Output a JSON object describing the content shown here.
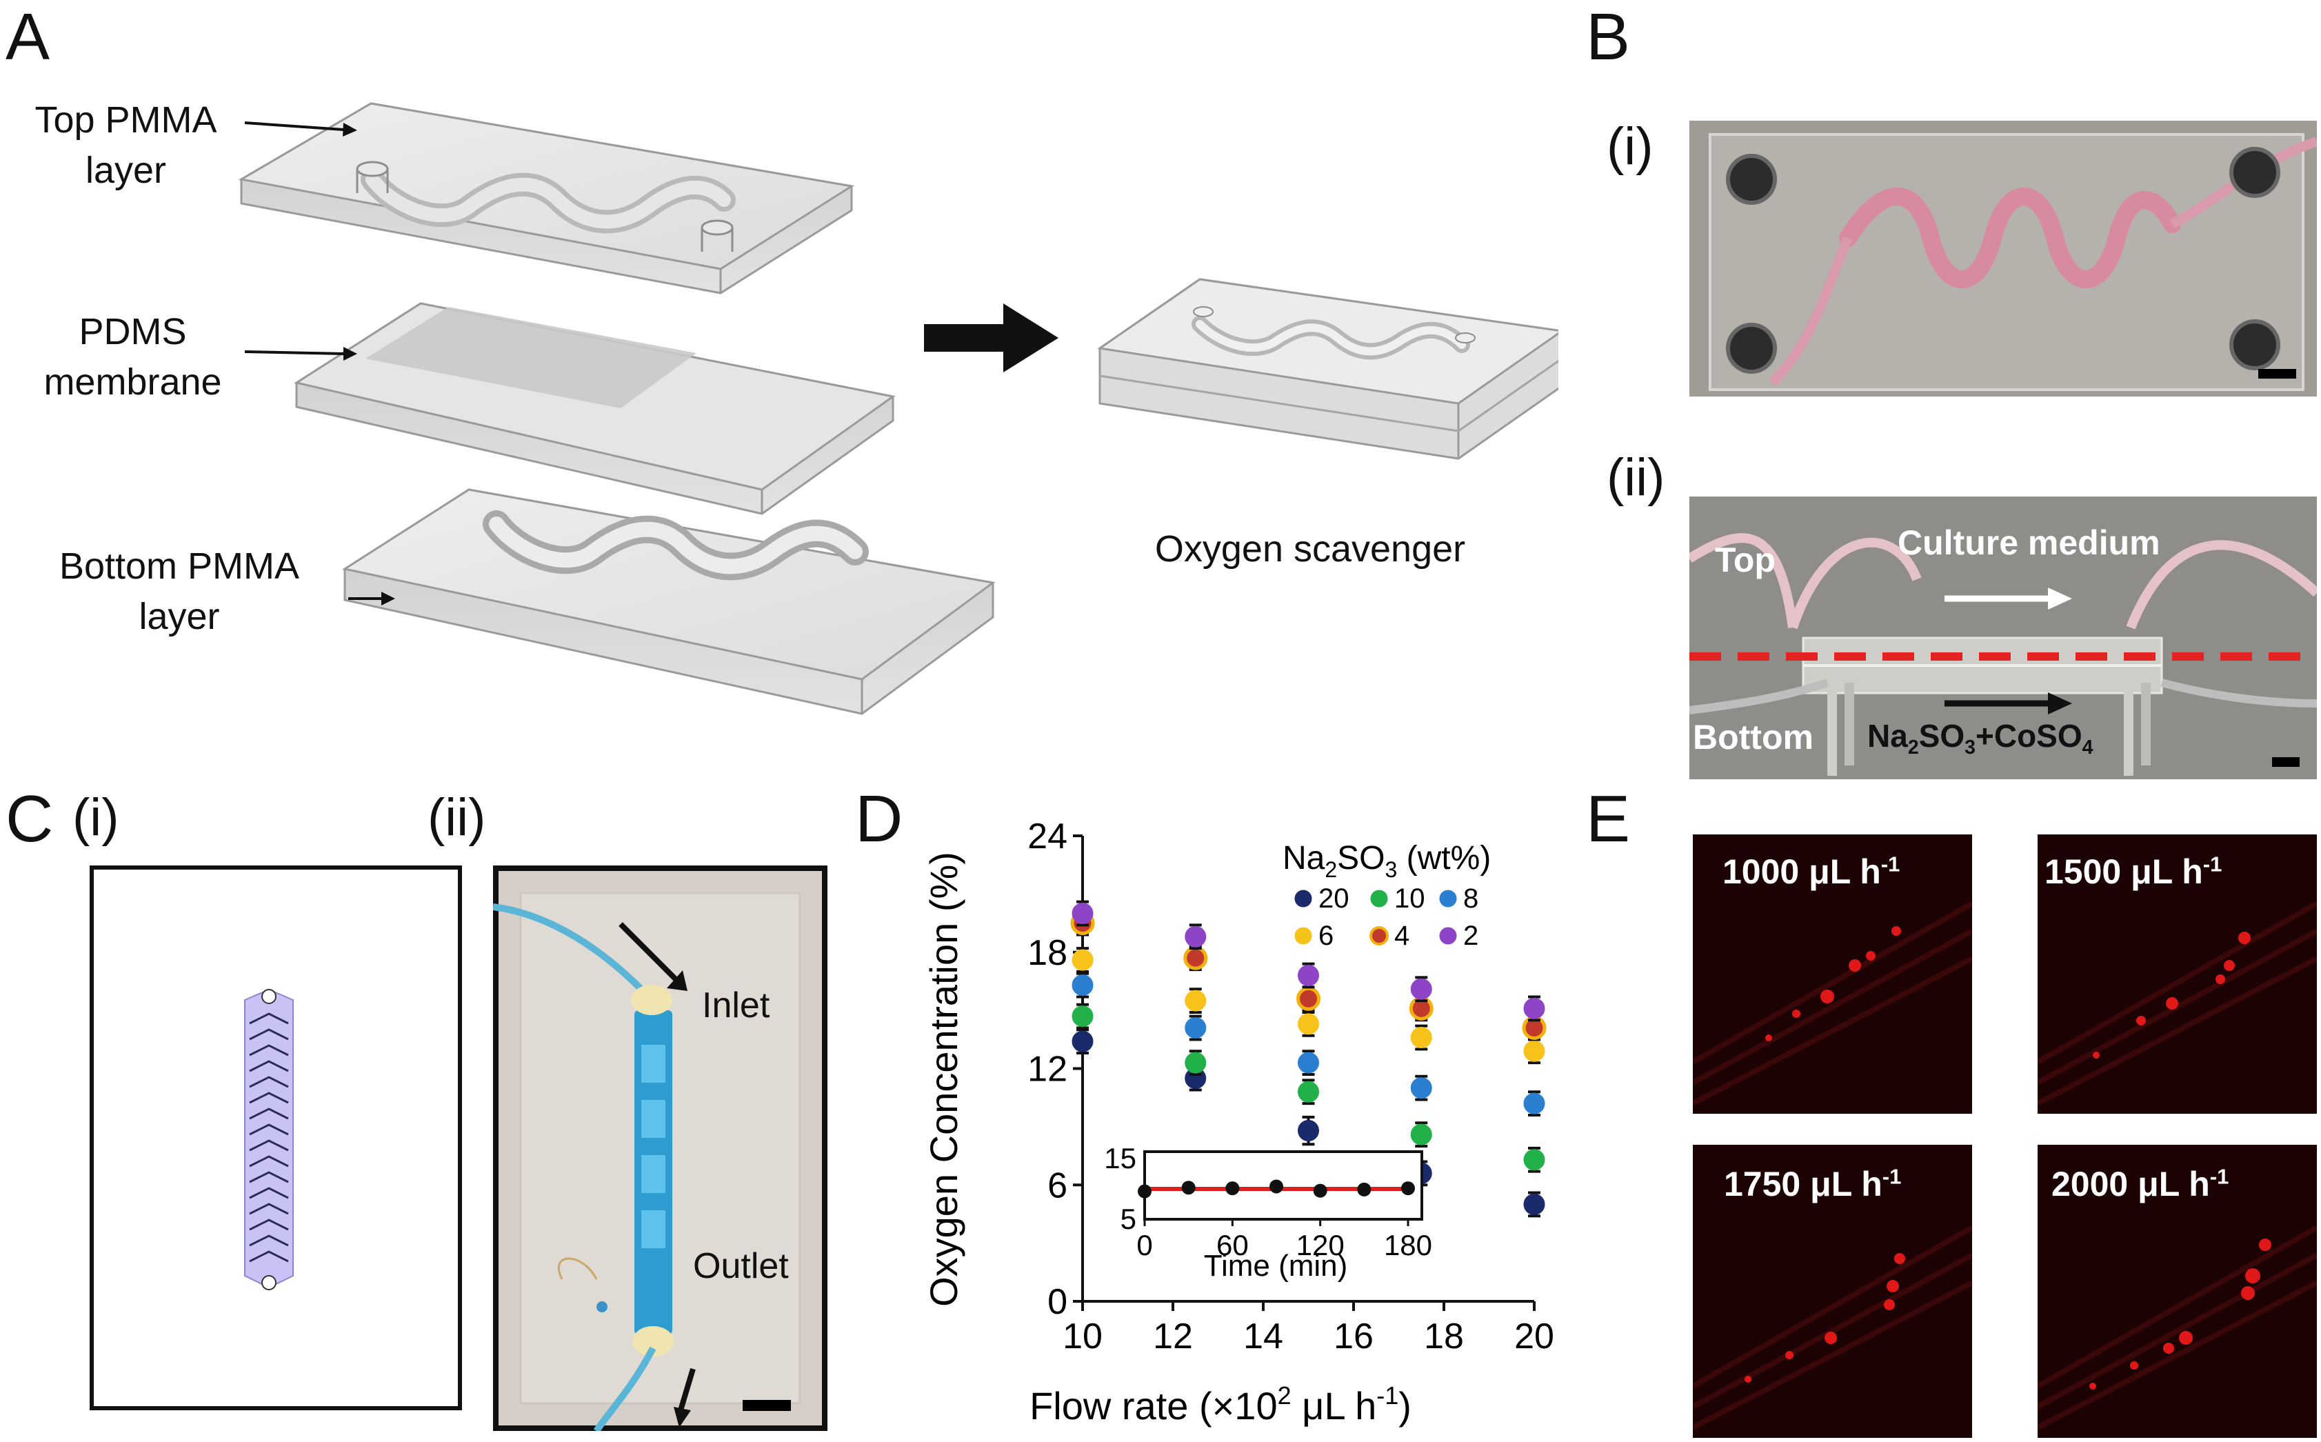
{
  "panels": {
    "A": {
      "letter": "A",
      "top_layer": "Top PMMA layer",
      "membrane": "PDMS membrane",
      "bottom_layer": "Bottom PMMA layer",
      "assembled_caption": "Oxygen scavenger"
    },
    "B": {
      "letter": "B",
      "sub_i": "(i)",
      "sub_ii": "(ii)",
      "top_label": "Top",
      "bottom_label": "Bottom",
      "culture_medium": "Culture medium",
      "scavenger_parts": {
        "a": "Na",
        "a_sub": "2",
        "b": "SO",
        "b_sub": "3",
        "c": "+CoSO",
        "c_sub": "4"
      }
    },
    "C": {
      "letter": "C",
      "sub_i": "(i)",
      "sub_ii": "(ii)",
      "inlet": "Inlet",
      "outlet": "Outlet"
    },
    "D": {
      "letter": "D",
      "legend_title_a": "Na",
      "legend_title_a_sub": "2",
      "legend_title_b": "SO",
      "legend_title_b_sub": "3",
      "legend_title_c": " (wt%)",
      "xlabel_a": "Flow rate (",
      "xlabel_b": "×10",
      "xlabel_sup": "2",
      "xlabel_c": " μL h",
      "xlabel_sup2": "-1",
      "xlabel_d": ")",
      "ylabel": "Oxygen Concentration (%)",
      "inset_xlabel": "Time (min)"
    },
    "E": {
      "letter": "E",
      "images": [
        {
          "value": "1000 μL h",
          "sup": "-1"
        },
        {
          "value": "1500 μL h",
          "sup": "-1"
        },
        {
          "value": "1750 μL h",
          "sup": "-1"
        },
        {
          "value": "2000 μL h",
          "sup": "-1"
        }
      ]
    }
  },
  "chart_data": [
    {
      "type": "scatter",
      "title": "",
      "xlabel": "Flow rate (×10² μL h⁻¹)",
      "ylabel": "Oxygen Concentration (%)",
      "xlim": [
        10,
        20
      ],
      "ylim": [
        0,
        24
      ],
      "xticks": [
        "10",
        "12",
        "14",
        "16",
        "18",
        "20"
      ],
      "yticks": [
        "0",
        "6",
        "12",
        "18",
        "24"
      ],
      "x": [
        10,
        12.5,
        15,
        17.5,
        20
      ],
      "legend_position": "top-right",
      "legend_title": "Na2SO3 (wt%)",
      "series": [
        {
          "name": "20",
          "color": "#1b2a6b",
          "values": [
            13.4,
            11.5,
            8.8,
            6.6,
            5.0
          ],
          "errors": [
            0.6,
            0.6,
            0.7,
            0.6,
            0.6
          ]
        },
        {
          "name": "10",
          "color": "#22b04b",
          "values": [
            14.7,
            12.3,
            10.8,
            8.6,
            7.3
          ],
          "errors": [
            0.6,
            0.6,
            0.6,
            0.6,
            0.6
          ]
        },
        {
          "name": "8",
          "color": "#2a7fd0",
          "values": [
            16.3,
            14.1,
            12.3,
            11.0,
            10.2
          ],
          "errors": [
            0.6,
            0.6,
            0.6,
            0.6,
            0.6
          ]
        },
        {
          "name": "6",
          "color": "#f7c21a",
          "values": [
            17.6,
            15.5,
            14.3,
            13.6,
            12.9
          ],
          "errors": [
            0.6,
            0.6,
            0.6,
            0.6,
            0.6
          ]
        },
        {
          "name": "4",
          "color": "#c0392b",
          "edge": "#f2b10d",
          "values": [
            19.5,
            17.7,
            15.6,
            15.1,
            14.1
          ],
          "errors": [
            0.6,
            0.6,
            0.6,
            0.6,
            0.6
          ]
        },
        {
          "name": "2",
          "color": "#8e44c7",
          "values": [
            20.0,
            18.8,
            16.8,
            16.1,
            15.1
          ],
          "errors": [
            0.6,
            0.6,
            0.6,
            0.6,
            0.6
          ]
        }
      ]
    },
    {
      "type": "line",
      "title": "",
      "xlabel": "Time (min)",
      "ylabel": "",
      "xlim": [
        0,
        180
      ],
      "ylim": [
        5,
        15
      ],
      "xticks": [
        "0",
        "60",
        "120",
        "180"
      ],
      "yticks": [
        "5",
        "15"
      ],
      "x": [
        0,
        30,
        60,
        90,
        120,
        150,
        180
      ],
      "series": [
        {
          "values": [
            9.6,
            10.2,
            10.1,
            10.4,
            9.7,
            9.9,
            10.1
          ],
          "color": "#111111"
        }
      ],
      "fit_line": {
        "value": 10.0,
        "color": "#e02020"
      }
    }
  ]
}
